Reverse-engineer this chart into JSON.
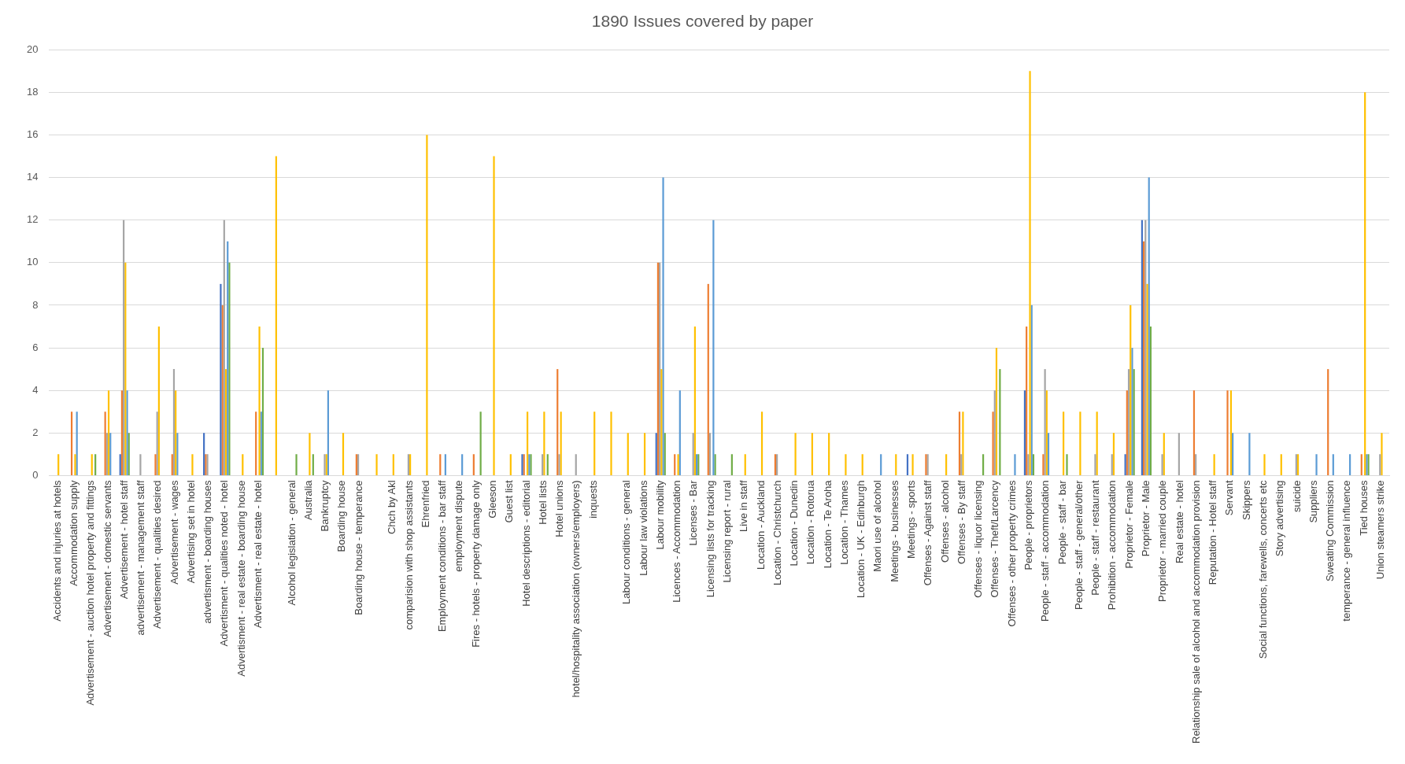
{
  "chart_data": {
    "type": "bar",
    "title": "1890 Issues covered by paper",
    "categories": [
      "Accidents and injuries at hotels",
      "Accommodation supply",
      "Advertisement - auction hotel property and fittings",
      "Advertisement - domestic servants",
      "Advertisement - hotel staff",
      "advertisement - management staff",
      "Advertisement - qualities desired",
      "Advertisement - wages",
      "Advertising set in hotel",
      "advertisment - boarding houses",
      "Advertisment - qualities noted - hotel",
      "Advertisment - real estate - boarding house",
      "Advertisment - real estate - hotel",
      null,
      "Alcohol legislation - general",
      "Australia",
      "Bankruptcy",
      "Boarding house",
      "Boarding house - temperance",
      null,
      "Chch by Akl",
      "comparision with shop assistants",
      "Ehrenfried",
      "Employment conditions - bar staff",
      "employment dispute",
      "Fires - hotels - property damage only",
      "Gleeson",
      "Guest list",
      "Hotel descriptions - editorial",
      "Hotel lists",
      "Hotel unions",
      "hotel/hospitality association (owners/employers)",
      "inquests",
      null,
      "Labour conditions - general",
      "Labour law violations",
      "Labour mobility",
      "Licences - Accommodation",
      "Licenses - Bar",
      "Licensing lists for tracking",
      "Licensing report - rural",
      "Live in staff",
      "Location - Auckland",
      "Location - Christchurch",
      "Location - Dunedin",
      "Location - Rotorua",
      "Location - Te Aroha",
      "Location - Thames",
      "Location - UK - Edinburgh",
      "Maori use of alcohol",
      "Meetings - businesses",
      "Meetings - sports",
      "Offenses - Against staff",
      "Offenses - alcohol",
      "Offenses - By staff",
      "Offenses - liquor licensing",
      "Offenses - Theft/Larcency",
      "Offenses - other property crimes",
      "People - proprietors",
      "People - staff - accommodation",
      "People - staff - bar",
      "People - staff - general/other",
      "People - staff - restaurant",
      "Prohibition - accommodation",
      "Proprietor - Female",
      "Proprietor - Male",
      "Proprietor - married couple",
      "Real estate - hotel",
      "Relationship sale of alcohol and accommodation provision",
      "Reputation - Hotel staff",
      "Servant",
      "Skippers",
      "Social functions, farewells, concerts etc",
      "Story advertising",
      "suicide",
      "Suppliers",
      "Sweating Commission",
      "temperance - general influence",
      "Tied houses",
      "Union steamers strike"
    ],
    "series": [
      {
        "color": "#4472c4",
        "values": [
          0,
          0,
          0,
          0,
          1,
          0,
          0,
          0,
          0,
          2,
          9,
          0,
          0,
          0,
          0,
          0,
          0,
          0,
          0,
          0,
          0,
          0,
          0,
          0,
          0,
          0,
          0,
          0,
          1,
          0,
          0,
          0,
          0,
          0,
          0,
          0,
          2,
          0,
          0,
          0,
          0,
          0,
          0,
          0,
          0,
          0,
          0,
          0,
          0,
          0,
          0,
          1,
          0,
          0,
          0,
          0,
          0,
          0,
          4,
          0,
          0,
          0,
          0,
          0,
          1,
          12,
          0,
          0,
          0,
          0,
          0,
          0,
          0,
          0,
          0,
          0,
          0,
          0,
          0,
          0
        ]
      },
      {
        "color": "#ed7d31",
        "values": [
          0,
          3,
          0,
          3,
          4,
          0,
          1,
          1,
          0,
          1,
          8,
          0,
          3,
          0,
          0,
          0,
          0,
          0,
          1,
          0,
          0,
          0,
          0,
          1,
          0,
          1,
          0,
          0,
          1,
          0,
          5,
          0,
          0,
          0,
          0,
          0,
          10,
          1,
          0,
          9,
          0,
          0,
          0,
          1,
          0,
          0,
          0,
          0,
          0,
          0,
          0,
          0,
          1,
          0,
          3,
          0,
          3,
          0,
          7,
          1,
          0,
          0,
          0,
          0,
          4,
          11,
          0,
          0,
          4,
          0,
          4,
          0,
          0,
          0,
          0,
          0,
          5,
          0,
          1,
          0
        ]
      },
      {
        "color": "#a5a5a5",
        "values": [
          0,
          0,
          0,
          2,
          12,
          1,
          3,
          5,
          0,
          1,
          12,
          0,
          0,
          0,
          0,
          0,
          1,
          0,
          1,
          0,
          0,
          1,
          0,
          0,
          0,
          0,
          0,
          0,
          0,
          1,
          1,
          1,
          0,
          0,
          0,
          0,
          10,
          0,
          2,
          2,
          0,
          0,
          0,
          1,
          0,
          0,
          0,
          0,
          0,
          0,
          0,
          0,
          1,
          0,
          1,
          0,
          4,
          0,
          1,
          5,
          0,
          0,
          1,
          1,
          5,
          12,
          1,
          2,
          1,
          0,
          0,
          0,
          0,
          0,
          1,
          0,
          0,
          0,
          0,
          1
        ]
      },
      {
        "color": "#ffc000",
        "values": [
          1,
          1,
          1,
          4,
          10,
          0,
          7,
          4,
          1,
          0,
          5,
          1,
          7,
          15,
          0,
          2,
          1,
          2,
          0,
          1,
          1,
          1,
          16,
          0,
          0,
          0,
          15,
          1,
          3,
          3,
          3,
          0,
          3,
          3,
          2,
          2,
          5,
          1,
          7,
          0,
          0,
          1,
          3,
          0,
          2,
          2,
          2,
          1,
          1,
          0,
          1,
          1,
          0,
          1,
          3,
          0,
          6,
          0,
          19,
          4,
          3,
          3,
          3,
          2,
          8,
          9,
          2,
          0,
          0,
          1,
          4,
          0,
          1,
          1,
          1,
          0,
          0,
          0,
          18,
          2
        ]
      },
      {
        "color": "#5b9bd5",
        "values": [
          0,
          3,
          0,
          2,
          4,
          0,
          0,
          2,
          0,
          0,
          11,
          0,
          3,
          0,
          0,
          0,
          4,
          0,
          0,
          0,
          0,
          0,
          0,
          1,
          1,
          0,
          0,
          0,
          1,
          0,
          0,
          0,
          0,
          0,
          0,
          0,
          14,
          4,
          1,
          12,
          0,
          0,
          0,
          0,
          0,
          0,
          0,
          0,
          0,
          1,
          0,
          0,
          0,
          0,
          0,
          0,
          0,
          1,
          8,
          2,
          0,
          0,
          0,
          0,
          6,
          14,
          0,
          0,
          0,
          0,
          2,
          2,
          0,
          0,
          0,
          1,
          1,
          1,
          1,
          0
        ]
      },
      {
        "color": "#70ad47",
        "values": [
          0,
          0,
          1,
          0,
          2,
          0,
          0,
          0,
          0,
          0,
          10,
          0,
          6,
          0,
          1,
          1,
          0,
          0,
          0,
          0,
          0,
          0,
          0,
          0,
          0,
          3,
          0,
          0,
          1,
          1,
          0,
          0,
          0,
          0,
          0,
          0,
          2,
          0,
          1,
          1,
          1,
          0,
          0,
          0,
          0,
          0,
          0,
          0,
          0,
          0,
          0,
          0,
          0,
          0,
          0,
          1,
          5,
          0,
          1,
          0,
          1,
          0,
          0,
          0,
          5,
          7,
          0,
          0,
          0,
          0,
          0,
          0,
          0,
          0,
          0,
          0,
          0,
          0,
          1,
          0
        ]
      }
    ],
    "ylim": [
      0,
      20
    ],
    "yticks": [
      0,
      2,
      4,
      6,
      8,
      10,
      12,
      14,
      16,
      18,
      20
    ],
    "grid": "y"
  }
}
